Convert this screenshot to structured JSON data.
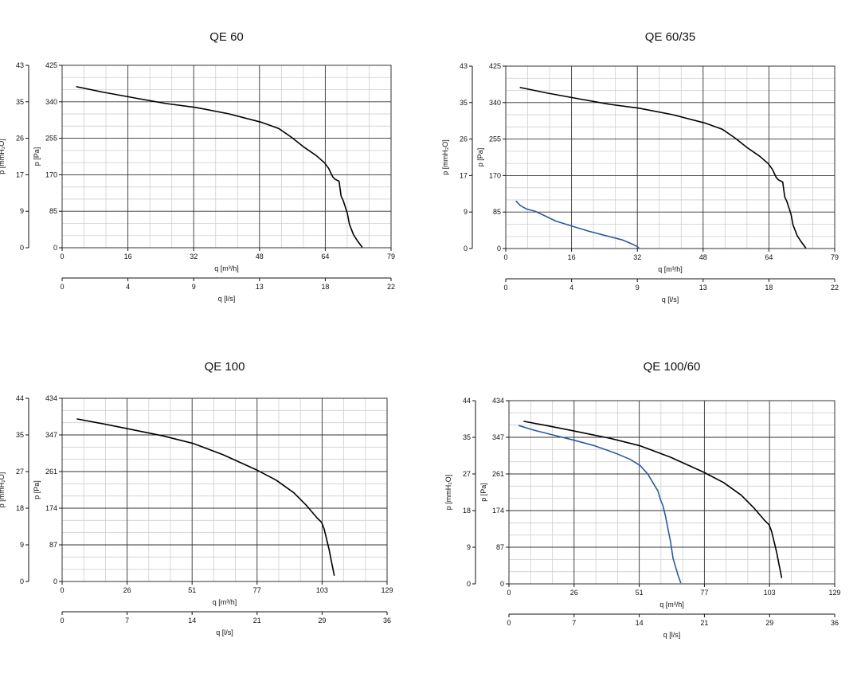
{
  "chart_data": [
    {
      "type": "line",
      "title": "QE 60",
      "xlabel": "q [m³/h]",
      "x2label": "q [l/s]",
      "ylabel": "p [Pa]",
      "y2label": "p [mmH₂O]",
      "xlim": [
        0,
        79
      ],
      "ylim": [
        0,
        425
      ],
      "x_ticks": [
        "0",
        "16",
        "32",
        "48",
        "64",
        "79"
      ],
      "x2_ticks": [
        "0",
        "4",
        "9",
        "13",
        "18",
        "22"
      ],
      "y_ticks": [
        "0",
        "85",
        "170",
        "255",
        "340",
        "425"
      ],
      "y2_ticks": [
        "0",
        "9",
        "17",
        "26",
        "35",
        "43"
      ],
      "grid": true,
      "series": [
        {
          "color": "#000000",
          "x": [
            3.5,
            10,
            18,
            25,
            32,
            40,
            48,
            52,
            55,
            58,
            61,
            63,
            64,
            65,
            65.5,
            66.5,
            67,
            67.5,
            68,
            68.5,
            69,
            70,
            71,
            72
          ],
          "y": [
            375,
            362,
            348,
            336,
            327,
            312,
            292,
            278,
            258,
            235,
            215,
            198,
            185,
            165,
            160,
            155,
            120,
            110,
            95,
            80,
            55,
            30,
            15,
            2
          ]
        }
      ]
    },
    {
      "type": "line",
      "title": "QE 60/35",
      "xlabel": "q [m³/h]",
      "x2label": "q [l/s]",
      "ylabel": "p [Pa]",
      "y2label": "p [mmH₂O]",
      "xlim": [
        0,
        79
      ],
      "ylim": [
        0,
        425
      ],
      "x_ticks": [
        "0",
        "16",
        "32",
        "48",
        "64",
        "79"
      ],
      "x2_ticks": [
        "0",
        "4",
        "9",
        "13",
        "18",
        "22"
      ],
      "y_ticks": [
        "0",
        "85",
        "170",
        "255",
        "340",
        "425"
      ],
      "y2_ticks": [
        "0",
        "9",
        "17",
        "26",
        "35",
        "43"
      ],
      "grid": true,
      "series": [
        {
          "color": "#000000",
          "x": [
            3.5,
            10,
            18,
            25,
            32,
            40,
            48,
            52,
            55,
            58,
            61,
            63,
            64,
            65,
            65.5,
            66.5,
            67,
            67.5,
            68,
            68.5,
            69,
            70,
            71,
            72
          ],
          "y": [
            375,
            362,
            348,
            336,
            327,
            312,
            292,
            278,
            258,
            235,
            215,
            198,
            185,
            165,
            160,
            155,
            120,
            110,
            95,
            80,
            55,
            30,
            15,
            2
          ]
        },
        {
          "color": "#2a5aa0",
          "x": [
            2.5,
            3.5,
            5,
            7,
            9,
            12,
            16,
            20,
            24,
            28,
            30,
            31.5,
            32
          ],
          "y": [
            110,
            100,
            92,
            87,
            78,
            64,
            52,
            40,
            30,
            20,
            12,
            5,
            1
          ]
        }
      ]
    },
    {
      "type": "line",
      "title": "QE 100",
      "xlabel": "q [m³/h]",
      "x2label": "q [l/s]",
      "ylabel": "p [Pa]",
      "y2label": "p [mmH₂O]",
      "xlim": [
        0,
        129
      ],
      "ylim": [
        0,
        434
      ],
      "x_ticks": [
        "0",
        "26",
        "51",
        "77",
        "103",
        "129"
      ],
      "x2_ticks": [
        "0",
        "7",
        "14",
        "21",
        "29",
        "36"
      ],
      "y_ticks": [
        "0",
        "87",
        "174",
        "261",
        "347",
        "434"
      ],
      "y2_ticks": [
        "0",
        "9",
        "18",
        "27",
        "35",
        "44"
      ],
      "grid": true,
      "series": [
        {
          "color": "#000000",
          "x": [
            6,
            15,
            26,
            40,
            52,
            64,
            77,
            85,
            92,
            97,
            101,
            103,
            104,
            105,
            106,
            107,
            108
          ],
          "y": [
            385,
            375,
            362,
            345,
            327,
            300,
            265,
            240,
            210,
            180,
            152,
            140,
            125,
            100,
            75,
            45,
            15
          ]
        }
      ]
    },
    {
      "type": "line",
      "title": "QE 100/60",
      "xlabel": "q [m³/h]",
      "x2label": "q [l/s]",
      "ylabel": "p [Pa]",
      "y2label": "p [mmH₂O]",
      "xlim": [
        0,
        129
      ],
      "ylim": [
        0,
        434
      ],
      "x_ticks": [
        "0",
        "26",
        "51",
        "77",
        "103",
        "129"
      ],
      "x2_ticks": [
        "0",
        "7",
        "14",
        "21",
        "29",
        "36"
      ],
      "y_ticks": [
        "0",
        "87",
        "174",
        "261",
        "347",
        "434"
      ],
      "y2_ticks": [
        "0",
        "9",
        "18",
        "27",
        "35",
        "44"
      ],
      "grid": true,
      "series": [
        {
          "color": "#000000",
          "x": [
            6,
            15,
            26,
            40,
            52,
            64,
            77,
            85,
            92,
            97,
            101,
            103,
            104,
            105,
            106,
            107,
            108
          ],
          "y": [
            385,
            375,
            362,
            345,
            327,
            300,
            265,
            240,
            210,
            180,
            152,
            140,
            125,
            100,
            75,
            45,
            15
          ]
        },
        {
          "color": "#2a5aa0",
          "x": [
            4,
            10,
            18,
            26,
            34,
            42,
            48,
            52,
            55,
            57,
            59,
            60,
            61,
            62,
            63,
            64,
            64.5,
            65,
            66,
            67,
            68
          ],
          "y": [
            375,
            364,
            352,
            340,
            327,
            310,
            295,
            280,
            260,
            240,
            220,
            200,
            185,
            160,
            130,
            100,
            80,
            60,
            40,
            20,
            3
          ]
        }
      ]
    }
  ]
}
